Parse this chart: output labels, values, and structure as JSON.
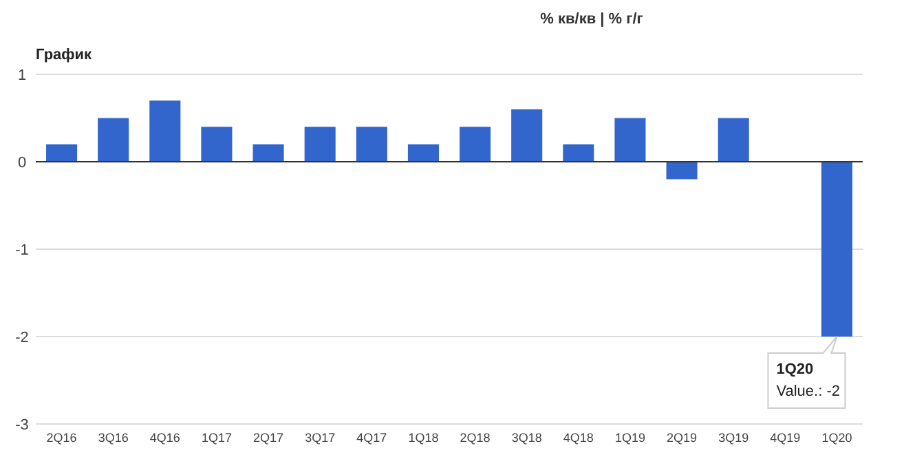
{
  "chart_data": {
    "type": "bar",
    "title": "График",
    "subtitle": "% кв/кв | % г/г",
    "categories": [
      "2Q16",
      "3Q16",
      "4Q16",
      "1Q17",
      "2Q17",
      "3Q17",
      "4Q17",
      "1Q18",
      "2Q18",
      "3Q18",
      "4Q18",
      "1Q19",
      "2Q19",
      "3Q19",
      "4Q19",
      "1Q20"
    ],
    "values": [
      0.2,
      0.5,
      0.7,
      0.4,
      0.2,
      0.4,
      0.4,
      0.2,
      0.4,
      0.6,
      0.2,
      0.5,
      -0.2,
      0.5,
      0,
      -2
    ],
    "color": "#3366cc",
    "ylim": [
      -3,
      1
    ],
    "yticks": [
      -3,
      -2,
      -1,
      0,
      1
    ],
    "grid": "y",
    "annotations": [
      {
        "text": "1Q20\nValue.: -2",
        "x": "1Q20",
        "y": -2
      }
    ]
  }
}
